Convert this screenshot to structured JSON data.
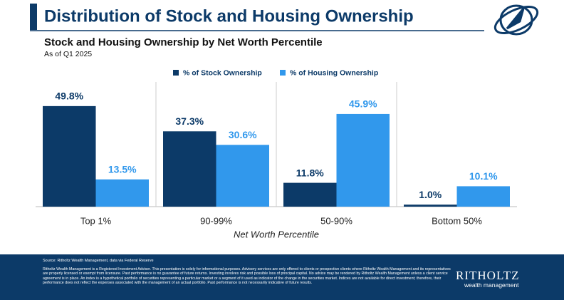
{
  "chart_data": {
    "type": "bar",
    "title": "Distribution of Stock and Housing Ownership",
    "subtitle": "Stock and Housing Ownership by Net Worth Percentile",
    "note": "As of Q1 2025",
    "x_label": "Net Worth Percentile",
    "categories": [
      "Top 1%",
      "90-99%",
      "50-90%",
      "Bottom 50%"
    ],
    "series": [
      {
        "name": "% of Stock Ownership",
        "color": "#0c3a68",
        "values": [
          49.8,
          37.3,
          11.8,
          1.0
        ],
        "value_labels": [
          "49.8%",
          "37.3%",
          "11.8%",
          "1.0%"
        ]
      },
      {
        "name": "% of Housing Ownership",
        "color": "#3198ec",
        "values": [
          13.5,
          30.6,
          45.9,
          10.1
        ],
        "value_labels": [
          "13.5%",
          "30.6%",
          "45.9%",
          "10.1%"
        ]
      }
    ],
    "legend": "top"
  },
  "footer": {
    "source": "Source: Ritholtz Wealth Management, data via Federal Reserve",
    "disclaimer": "Ritholtz Wealth Management is a Registered Investment Adviser. This presentation is solely for informational purposes. Advisory services are only offered to clients or prospective clients where Ritholtz Wealth Management and its representatives are properly licensed or exempt from licensure. Past performance is no guarantee of future returns. Investing involves risk and possible loss of principal capital. No advice may be rendered by Ritholtz Wealth Management unless a client service agreement is in place. An index is a hypothetical portfolio of securities representing a particular market or a segment of it used as indicator of the change in the securities market. Indices are not available for direct investment; therefore, their performance does not reflect the expenses associated with the management of an actual portfolio. Past performance is not necessarily indicative of future results.",
    "brand": "RITHOLTZ",
    "brand_sub": "wealth management"
  }
}
